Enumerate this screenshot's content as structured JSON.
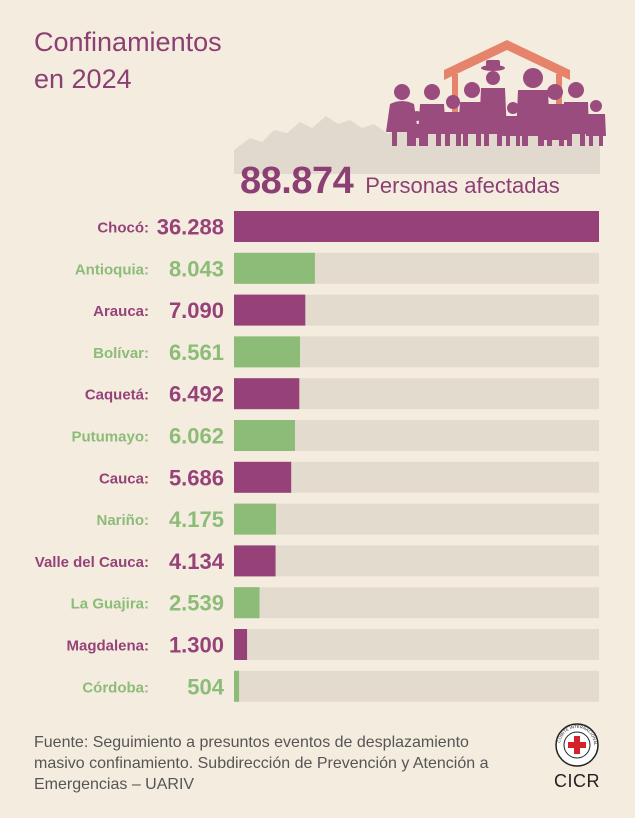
{
  "title_line1": "Confinamientos",
  "title_line2": "en 2024",
  "total_value": "88.874",
  "total_label": "Personas afectadas",
  "source_text": "Fuente: Seguimiento a presuntos eventos de desplazamiento masivo confinamiento. Subdirección de Prevención y Atención a Emergencias – UARIV",
  "logo_text": "CICR",
  "logo_ring_text": "COMITÉ INTERNACIONAL GENÈVE",
  "colors": {
    "background": "#f4eddf",
    "purple": "#964279",
    "green": "#8dbb78",
    "track": "#e4dbcf",
    "roof": "#e5846b",
    "figures": "#9b4c7f",
    "mountain": "#e2d9ce"
  },
  "chart_data": {
    "type": "bar",
    "orientation": "horizontal",
    "title": "Confinamientos en 2024",
    "total": 88874,
    "xlim": [
      0,
      36288
    ],
    "categories": [
      "Chocó:",
      "Antioquia:",
      "Arauca:",
      "Bolívar:",
      "Caquetá:",
      "Putumayo:",
      "Cauca:",
      "Nariño:",
      "Valle del Cauca:",
      "La Guajira:",
      "Magdalena:",
      "Córdoba:"
    ],
    "values": [
      36288,
      8043,
      7090,
      6561,
      6492,
      6062,
      5686,
      4175,
      4134,
      2539,
      1300,
      504
    ],
    "value_labels": [
      "36.288",
      "8.043",
      "7.090",
      "6.561",
      "6.492",
      "6.062",
      "5.686",
      "4.175",
      "4.134",
      "2.539",
      "1.300",
      "504"
    ],
    "bar_colors": [
      "purple",
      "green",
      "purple",
      "green",
      "purple",
      "green",
      "purple",
      "green",
      "purple",
      "green",
      "purple",
      "green"
    ]
  }
}
